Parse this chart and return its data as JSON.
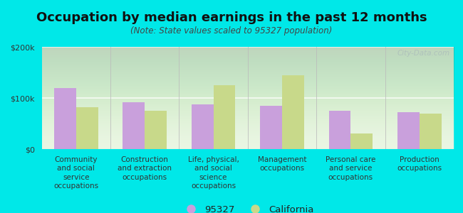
{
  "title": "Occupation by median earnings in the past 12 months",
  "subtitle": "(Note: State values scaled to 95327 population)",
  "categories": [
    "Community\nand social\nservice\noccupations",
    "Construction\nand extraction\noccupations",
    "Life, physical,\nand social\nscience\noccupations",
    "Management\noccupations",
    "Personal care\nand service\noccupations",
    "Production\noccupations"
  ],
  "values_95327": [
    120000,
    92000,
    88000,
    85000,
    75000,
    72000
  ],
  "values_california": [
    82000,
    75000,
    125000,
    145000,
    30000,
    70000
  ],
  "color_95327": "#c9a0dc",
  "color_california": "#c8d98a",
  "background_outer": "#00e8e8",
  "background_plot": "#e8f5e0",
  "ylim": [
    0,
    200000
  ],
  "ytick_labels": [
    "$0",
    "$100k",
    "$200k"
  ],
  "legend_label_95327": "95327",
  "legend_label_california": "California",
  "watermark": "City-Data.com",
  "title_fontsize": 13,
  "subtitle_fontsize": 8.5,
  "tick_fontsize": 8,
  "xlabel_fontsize": 7.5
}
